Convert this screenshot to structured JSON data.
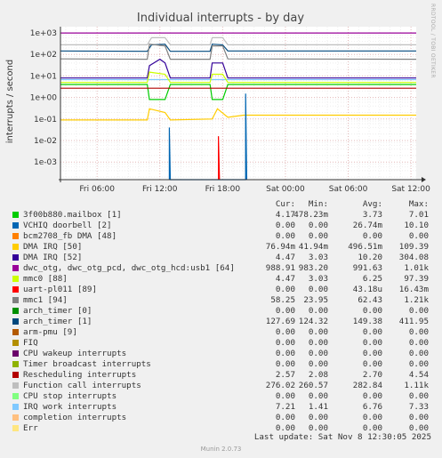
{
  "title": "Individual interrupts - by day",
  "side_label": "RRDTOOL / TOBI OETIKER",
  "footer": {
    "last_update": "Last update: Sat Nov  8 12:30:05 2025",
    "munin": "Munin 2.0.73"
  },
  "legend_headers": [
    "Cur:",
    "Min:",
    "Avg:",
    "Max:"
  ],
  "legend": [
    {
      "label": "3f00b880.mailbox [1]",
      "color": "#00cc00",
      "cur": "4.17",
      "min": "478.23m",
      "avg": "3.73",
      "max": "7.01"
    },
    {
      "label": "VCHIQ doorbell [2]",
      "color": "#0066b3",
      "cur": "0.00",
      "min": "0.00",
      "avg": "26.74m",
      "max": "10.10"
    },
    {
      "label": "bcm2708_fb DMA [48]",
      "color": "#ff8000",
      "cur": "0.00",
      "min": "0.00",
      "avg": "0.00",
      "max": "0.00"
    },
    {
      "label": "DMA IRQ [50]",
      "color": "#ffcc00",
      "cur": "76.94m",
      "min": "41.94m",
      "avg": "496.51m",
      "max": "109.39"
    },
    {
      "label": "DMA IRQ [52]",
      "color": "#330099",
      "cur": "4.47",
      "min": "3.03",
      "avg": "10.20",
      "max": "304.08"
    },
    {
      "label": "dwc_otg, dwc_otg_pcd, dwc_otg_hcd:usb1 [64]",
      "color": "#990099",
      "cur": "988.91",
      "min": "983.20",
      "avg": "991.63",
      "max": "1.01k"
    },
    {
      "label": "mmc0 [88]",
      "color": "#ccff00",
      "cur": "4.47",
      "min": "3.03",
      "avg": "6.25",
      "max": "97.39"
    },
    {
      "label": "uart-pl011 [89]",
      "color": "#ff0000",
      "cur": "0.00",
      "min": "0.00",
      "avg": "43.18u",
      "max": "16.43m"
    },
    {
      "label": "mmc1 [94]",
      "color": "#808080",
      "cur": "58.25",
      "min": "23.95",
      "avg": "62.43",
      "max": "1.21k"
    },
    {
      "label": "arch_timer [0]",
      "color": "#008f00",
      "cur": "0.00",
      "min": "0.00",
      "avg": "0.00",
      "max": "0.00"
    },
    {
      "label": "arch_timer [1]",
      "color": "#00487d",
      "cur": "127.69",
      "min": "124.32",
      "avg": "149.38",
      "max": "411.95"
    },
    {
      "label": "arm-pmu [9]",
      "color": "#b35a00",
      "cur": "0.00",
      "min": "0.00",
      "avg": "0.00",
      "max": "0.00"
    },
    {
      "label": "FIQ",
      "color": "#b38f00",
      "cur": "0.00",
      "min": "0.00",
      "avg": "0.00",
      "max": "0.00"
    },
    {
      "label": "CPU wakeup interrupts",
      "color": "#6b006b",
      "cur": "0.00",
      "min": "0.00",
      "avg": "0.00",
      "max": "0.00"
    },
    {
      "label": "Timer broadcast interrupts",
      "color": "#8fb300",
      "cur": "0.00",
      "min": "0.00",
      "avg": "0.00",
      "max": "0.00"
    },
    {
      "label": "Rescheduling interrupts",
      "color": "#b30000",
      "cur": "2.57",
      "min": "2.08",
      "avg": "2.70",
      "max": "4.54"
    },
    {
      "label": "Function call interrupts",
      "color": "#bebebe",
      "cur": "276.02",
      "min": "260.57",
      "avg": "282.84",
      "max": "1.11k"
    },
    {
      "label": "CPU stop interrupts",
      "color": "#80ff80",
      "cur": "0.00",
      "min": "0.00",
      "avg": "0.00",
      "max": "0.00"
    },
    {
      "label": "IRQ work interrupts",
      "color": "#80c9ff",
      "cur": "7.21",
      "min": "1.41",
      "avg": "6.76",
      "max": "7.33"
    },
    {
      "label": "completion interrupts",
      "color": "#ffc080",
      "cur": "0.00",
      "min": "0.00",
      "avg": "0.00",
      "max": "0.00"
    },
    {
      "label": "Err",
      "color": "#ffe680",
      "cur": "0.00",
      "min": "0.00",
      "avg": "0.00",
      "max": "0.00"
    }
  ],
  "chart_data": {
    "type": "line",
    "title": "Individual interrupts - by day",
    "ylabel": "interrupts / second",
    "yscale": "log",
    "ylim": [
      0.0001,
      1000
    ],
    "y_ticks": [
      "1e-03",
      "1e-02",
      "1e-01",
      "1e+00",
      "1e+01",
      "1e+02",
      "1e+03"
    ],
    "x_ticks": [
      "Fri 06:00",
      "Fri 12:00",
      "Fri 18:00",
      "Sat 00:00",
      "Sat 06:00",
      "Sat 12:00"
    ],
    "xlim_hours": [
      2.5,
      36.5
    ],
    "grid": true,
    "series": [
      {
        "name": "dwc_otg, dwc_otg_pcd, dwc_otg_hcd:usb1 [64]",
        "color": "#990099",
        "points": [
          [
            2.5,
            990
          ],
          [
            36.5,
            990
          ]
        ]
      },
      {
        "name": "Function call interrupts",
        "color": "#bebebe",
        "points": [
          [
            2.5,
            280
          ],
          [
            10.8,
            280
          ],
          [
            11.2,
            600
          ],
          [
            12.5,
            600
          ],
          [
            13,
            280
          ],
          [
            16.8,
            280
          ],
          [
            17,
            600
          ],
          [
            18,
            600
          ],
          [
            18.5,
            280
          ],
          [
            36.5,
            280
          ]
        ]
      },
      {
        "name": "arch_timer [1]",
        "color": "#00487d",
        "points": [
          [
            2.5,
            145
          ],
          [
            10.8,
            140
          ],
          [
            11.2,
            280
          ],
          [
            12.5,
            300
          ],
          [
            13,
            140
          ],
          [
            16.8,
            140
          ],
          [
            17,
            300
          ],
          [
            18,
            280
          ],
          [
            18.5,
            145
          ],
          [
            36.5,
            145
          ]
        ]
      },
      {
        "name": "mmc1 [94]",
        "color": "#808080",
        "points": [
          [
            2.5,
            62
          ],
          [
            10.8,
            60
          ],
          [
            11,
            300
          ],
          [
            12.5,
            250
          ],
          [
            13,
            60
          ],
          [
            16.8,
            60
          ],
          [
            17,
            250
          ],
          [
            18,
            250
          ],
          [
            18.5,
            62
          ],
          [
            36.5,
            60
          ]
        ]
      },
      {
        "name": "DMA IRQ [52]",
        "color": "#330099",
        "points": [
          [
            2.5,
            8
          ],
          [
            10.8,
            8
          ],
          [
            11,
            30
          ],
          [
            12,
            60
          ],
          [
            12.5,
            40
          ],
          [
            13,
            8
          ],
          [
            16.8,
            8
          ],
          [
            17,
            40
          ],
          [
            18,
            40
          ],
          [
            18.5,
            8
          ],
          [
            36.5,
            8
          ]
        ]
      },
      {
        "name": "IRQ work interrupts",
        "color": "#80c9ff",
        "points": [
          [
            2.5,
            6.8
          ],
          [
            36.5,
            6.8
          ]
        ]
      },
      {
        "name": "mmc0 [88]",
        "color": "#ccff00",
        "points": [
          [
            2.5,
            5
          ],
          [
            10.8,
            5
          ],
          [
            11,
            15
          ],
          [
            12.5,
            12
          ],
          [
            13,
            5
          ],
          [
            16.8,
            5
          ],
          [
            17,
            12
          ],
          [
            18,
            12
          ],
          [
            18.5,
            5
          ],
          [
            36.5,
            5
          ]
        ]
      },
      {
        "name": "3f00b880.mailbox [1]",
        "color": "#00cc00",
        "points": [
          [
            2.5,
            4
          ],
          [
            10.8,
            4
          ],
          [
            11,
            0.8
          ],
          [
            12.5,
            0.8
          ],
          [
            13,
            4
          ],
          [
            16.8,
            4
          ],
          [
            17,
            0.8
          ],
          [
            18,
            0.8
          ],
          [
            18.5,
            4
          ],
          [
            36.5,
            4
          ]
        ]
      },
      {
        "name": "Rescheduling interrupts",
        "color": "#b30000",
        "points": [
          [
            2.5,
            2.7
          ],
          [
            36.5,
            2.7
          ]
        ]
      },
      {
        "name": "DMA IRQ [50]",
        "color": "#ffcc00",
        "points": [
          [
            2.5,
            0.09
          ],
          [
            10.8,
            0.09
          ],
          [
            11,
            0.3
          ],
          [
            12.5,
            0.2
          ],
          [
            13,
            0.09
          ],
          [
            17,
            0.1
          ],
          [
            17.5,
            0.3
          ],
          [
            18.5,
            0.12
          ],
          [
            20,
            0.15
          ],
          [
            36.5,
            0.15
          ]
        ]
      },
      {
        "name": "VCHIQ doorbell [2]",
        "color": "#0066b3",
        "points": [
          [
            12.9,
            5e-05
          ],
          [
            12.9,
            0.04
          ],
          [
            13.0,
            5e-05
          ],
          [
            20.2,
            5e-05
          ],
          [
            20.2,
            1.5
          ],
          [
            20.3,
            5e-05
          ]
        ]
      },
      {
        "name": "uart-pl011 [89]",
        "color": "#ff0000",
        "points": [
          [
            17.6,
            5e-05
          ],
          [
            17.6,
            0.016
          ],
          [
            17.7,
            5e-05
          ]
        ]
      }
    ]
  }
}
